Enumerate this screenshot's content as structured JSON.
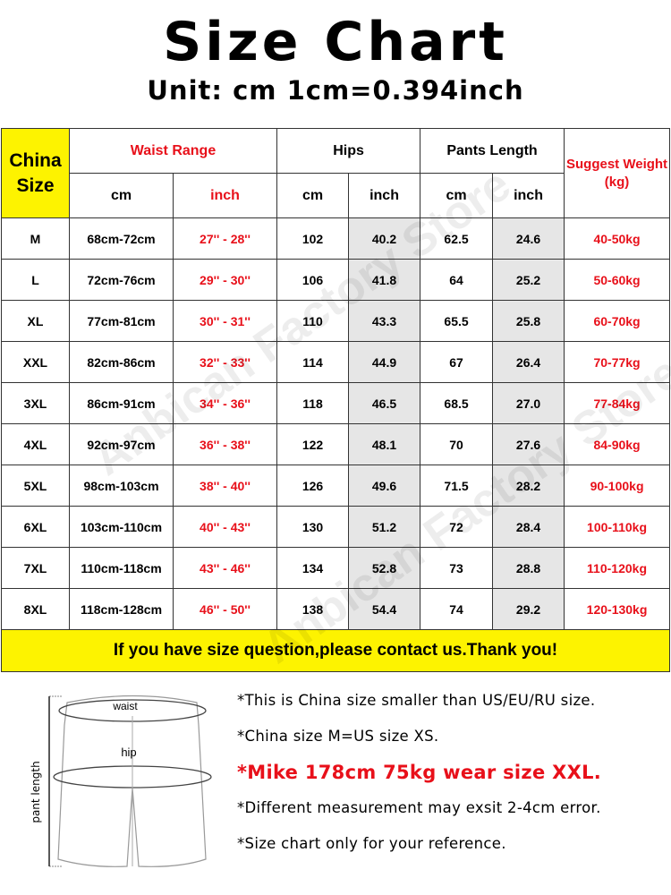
{
  "title": "Size Chart",
  "unit": "Unit: cm 1cm=0.394inch",
  "watermark": "Anbican Factory Store",
  "colors": {
    "accent_red": "#e8101a",
    "highlight_yellow": "#fdf300",
    "shade_gray": "#e6e6e6"
  },
  "table": {
    "headers": {
      "size": "China Size",
      "waist": "Waist Range",
      "hips": "Hips",
      "pants_length": "Pants Length",
      "weight": "Suggest Weight (kg)",
      "cm": "cm",
      "inch": "inch"
    },
    "rows": [
      [
        "M",
        "68cm-72cm",
        "27'' - 28''",
        "102",
        "40.2",
        "62.5",
        "24.6",
        "40-50kg"
      ],
      [
        "L",
        "72cm-76cm",
        "29'' - 30''",
        "106",
        "41.8",
        "64",
        "25.2",
        "50-60kg"
      ],
      [
        "XL",
        "77cm-81cm",
        "30'' - 31''",
        "110",
        "43.3",
        "65.5",
        "25.8",
        "60-70kg"
      ],
      [
        "XXL",
        "82cm-86cm",
        "32'' - 33''",
        "114",
        "44.9",
        "67",
        "26.4",
        "70-77kg"
      ],
      [
        "3XL",
        "86cm-91cm",
        "34'' - 36''",
        "118",
        "46.5",
        "68.5",
        "27.0",
        "77-84kg"
      ],
      [
        "4XL",
        "92cm-97cm",
        "36'' - 38''",
        "122",
        "48.1",
        "70",
        "27.6",
        "84-90kg"
      ],
      [
        "5XL",
        "98cm-103cm",
        "38'' - 40''",
        "126",
        "49.6",
        "71.5",
        "28.2",
        "90-100kg"
      ],
      [
        "6XL",
        "103cm-110cm",
        "40'' - 43''",
        "130",
        "51.2",
        "72",
        "28.4",
        "100-110kg"
      ],
      [
        "7XL",
        "110cm-118cm",
        "43'' - 46''",
        "134",
        "52.8",
        "73",
        "28.8",
        "110-120kg"
      ],
      [
        "8XL",
        "118cm-128cm",
        "46'' - 50''",
        "138",
        "54.4",
        "74",
        "29.2",
        "120-130kg"
      ]
    ],
    "footer": "If you have size question,please contact us.Thank you!"
  },
  "diagram": {
    "waist": "waist",
    "hip": "hip",
    "pant_length": "pant length"
  },
  "notes": [
    "*This is China size smaller than US/EU/RU size.",
    "*China size M=US size XS.",
    "*Mike 178cm 75kg wear size XXL.",
    "*Different measurement may exsit 2-4cm error.",
    "*Size chart only for your reference."
  ]
}
